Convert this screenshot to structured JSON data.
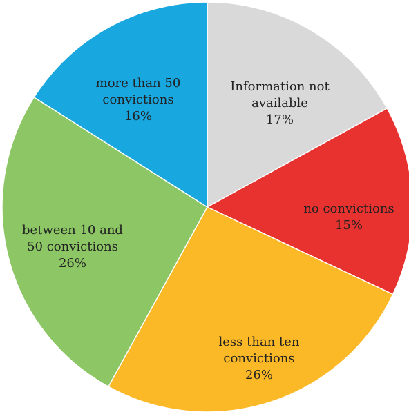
{
  "chart_data": {
    "type": "pie",
    "categories": [
      "Information not available",
      "no convictions",
      "less than ten convictions",
      "between 10 and 50 convictions",
      "more than 50 convictions"
    ],
    "values": [
      17,
      15,
      26,
      26,
      16
    ],
    "value_labels": [
      "17%",
      "15%",
      "26%",
      "26%",
      "16%"
    ],
    "colors": [
      "#d9d9d9",
      "#e8322f",
      "#fbb927",
      "#8cc665",
      "#19a7e0"
    ]
  }
}
